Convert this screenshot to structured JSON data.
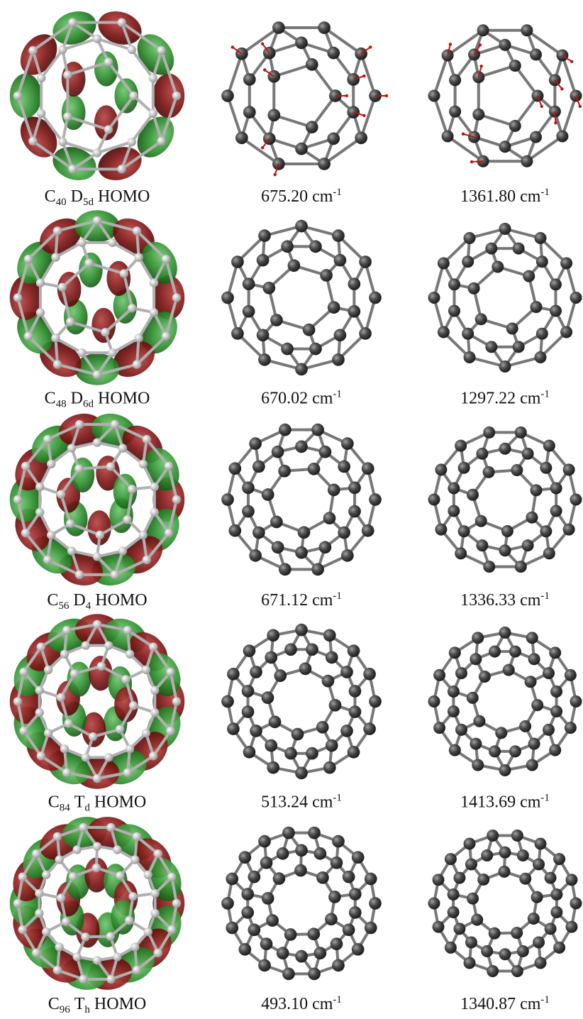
{
  "rows": [
    {
      "homo": {
        "element": "C",
        "size": "40",
        "symmetry": "D",
        "symmetry_sub": "5d",
        "orbital": "HOMO"
      },
      "frequencies": [
        {
          "value": "675.20",
          "unit": "cm",
          "exponent": "-1"
        },
        {
          "value": "1361.80",
          "unit": "cm",
          "exponent": "-1"
        }
      ]
    },
    {
      "homo": {
        "element": "C",
        "size": "48",
        "symmetry": "D",
        "symmetry_sub": "6d",
        "orbital": "HOMO"
      },
      "frequencies": [
        {
          "value": "670.02",
          "unit": "cm",
          "exponent": "-1"
        },
        {
          "value": "1297.22",
          "unit": "cm",
          "exponent": "-1"
        }
      ]
    },
    {
      "homo": {
        "element": "C",
        "size": "56",
        "symmetry": "D",
        "symmetry_sub": "4",
        "orbital": "HOMO"
      },
      "frequencies": [
        {
          "value": "671.12",
          "unit": "cm",
          "exponent": "-1"
        },
        {
          "value": "1336.33",
          "unit": "cm",
          "exponent": "-1"
        }
      ]
    },
    {
      "homo": {
        "element": "C",
        "size": "84",
        "symmetry": "T",
        "symmetry_sub": "d",
        "orbital": "HOMO"
      },
      "frequencies": [
        {
          "value": "513.24",
          "unit": "cm",
          "exponent": "-1"
        },
        {
          "value": "1413.69",
          "unit": "cm",
          "exponent": "-1"
        }
      ]
    },
    {
      "homo": {
        "element": "C",
        "size": "96",
        "symmetry": "T",
        "symmetry_sub": "h",
        "orbital": "HOMO"
      },
      "frequencies": [
        {
          "value": "493.10",
          "unit": "cm",
          "exponent": "-1"
        },
        {
          "value": "1340.87",
          "unit": "cm",
          "exponent": "-1"
        }
      ]
    }
  ]
}
